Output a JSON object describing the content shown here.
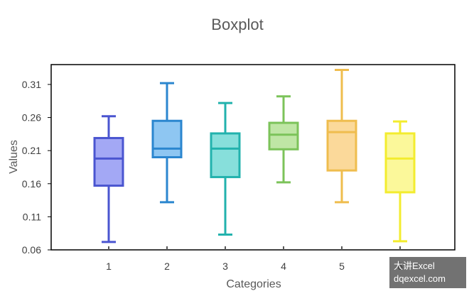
{
  "chart_data": {
    "type": "boxplot",
    "title": "Boxplot",
    "xlabel": "Categories",
    "ylabel": "Values",
    "ylim": [
      0.06,
      0.34
    ],
    "yticks": [
      "0.06",
      "0.11",
      "0.16",
      "0.21",
      "0.26",
      "0.31"
    ],
    "yticks_values": [
      0.06,
      0.11,
      0.16,
      0.21,
      0.26,
      0.31
    ],
    "categories": [
      "1",
      "2",
      "3",
      "4",
      "5",
      "6"
    ],
    "grid": false,
    "boxes": [
      {
        "category": "1",
        "min": 0.072,
        "q1": 0.157,
        "median": 0.198,
        "q3": 0.229,
        "max": 0.262,
        "fill": "#a3a8f5",
        "stroke": "#4a55d0"
      },
      {
        "category": "2",
        "min": 0.132,
        "q1": 0.2,
        "median": 0.213,
        "q3": 0.255,
        "max": 0.312,
        "fill": "#8ec6f2",
        "stroke": "#2b86cf"
      },
      {
        "category": "3",
        "min": 0.083,
        "q1": 0.17,
        "median": 0.213,
        "q3": 0.236,
        "max": 0.282,
        "fill": "#87dfdb",
        "stroke": "#22b2ad"
      },
      {
        "category": "4",
        "min": 0.162,
        "q1": 0.212,
        "median": 0.234,
        "q3": 0.252,
        "max": 0.292,
        "fill": "#bfe6a5",
        "stroke": "#7cc35a"
      },
      {
        "category": "5",
        "min": 0.132,
        "q1": 0.18,
        "median": 0.238,
        "q3": 0.255,
        "max": 0.332,
        "fill": "#fbd99a",
        "stroke": "#efbd4e"
      },
      {
        "category": "6",
        "min": 0.073,
        "q1": 0.147,
        "median": 0.198,
        "q3": 0.236,
        "max": 0.254,
        "fill": "#fbf89a",
        "stroke": "#f3ec2f"
      }
    ]
  },
  "watermark": {
    "line1": "大讲Excel",
    "line2": "dqexcel.com"
  }
}
